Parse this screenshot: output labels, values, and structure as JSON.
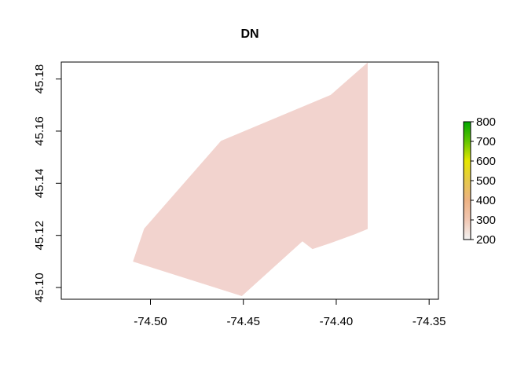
{
  "chart_data": {
    "type": "heatmap",
    "title": "DN",
    "xlabel": "",
    "ylabel": "",
    "xlim": [
      -74.548,
      -74.345
    ],
    "ylim": [
      45.0955,
      45.1865
    ],
    "x_ticks": [
      {
        "value": -74.5,
        "label": "-74.50"
      },
      {
        "value": -74.45,
        "label": "-74.45"
      },
      {
        "value": -74.4,
        "label": "-74.40"
      },
      {
        "value": -74.35,
        "label": "-74.35"
      }
    ],
    "y_ticks": [
      {
        "value": 45.1,
        "label": "45.10"
      },
      {
        "value": 45.12,
        "label": "45.12"
      },
      {
        "value": 45.14,
        "label": "45.14"
      },
      {
        "value": 45.16,
        "label": "45.16"
      },
      {
        "value": 45.18,
        "label": "45.18"
      }
    ],
    "grid": false,
    "raster_fill_color": "#f2d3ce",
    "raster_polygons": [
      {
        "name": "main-footprint",
        "points": [
          [
            -74.5093,
            45.11
          ],
          [
            -74.5033,
            45.1226
          ],
          [
            -74.462,
            45.1562
          ],
          [
            -74.403,
            45.1738
          ],
          [
            -74.3832,
            45.1862
          ],
          [
            -74.3832,
            45.1275
          ],
          [
            -74.4082,
            45.118
          ],
          [
            -74.4182,
            45.1178
          ],
          [
            -74.4508,
            45.0968
          ]
        ]
      },
      {
        "name": "south-lobe",
        "points": [
          [
            -74.4182,
            45.1178
          ],
          [
            -74.3832,
            45.1275
          ],
          [
            -74.3832,
            45.1225
          ],
          [
            -74.39,
            45.1205
          ],
          [
            -74.4035,
            45.117
          ],
          [
            -74.4128,
            45.1148
          ]
        ]
      }
    ],
    "legend": {
      "position": "right",
      "min": 200,
      "max": 800,
      "ticks": [
        200,
        300,
        400,
        500,
        600,
        700,
        800
      ],
      "colors": [
        "#f2f2f2",
        "#f1c7b3",
        "#edb283",
        "#e6c84a",
        "#e6e600",
        "#63c600",
        "#00a600"
      ]
    }
  }
}
